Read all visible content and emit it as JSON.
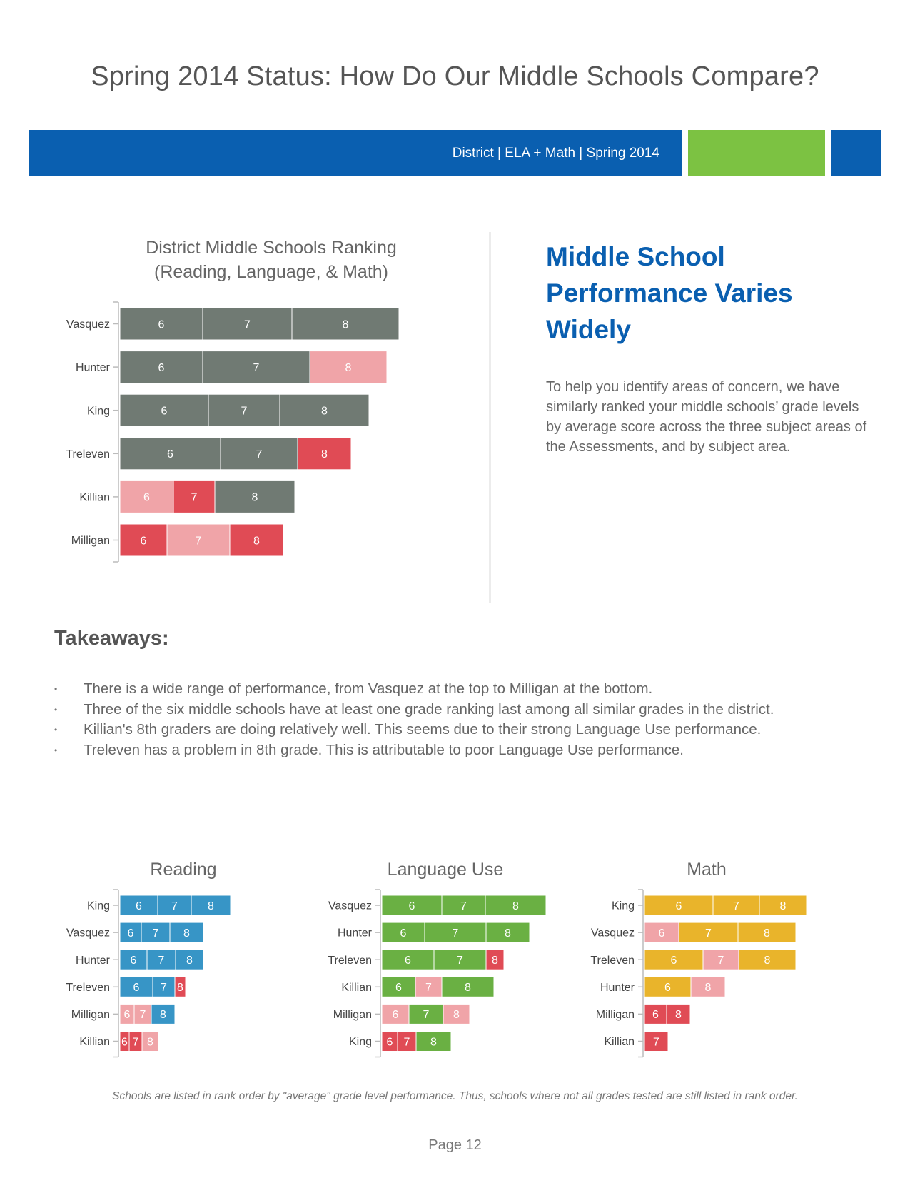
{
  "page": {
    "title": "Spring 2014 Status: How Do Our Middle Schools Compare?",
    "banner_text": "District | ELA + Math | Spring 2014",
    "page_number": "Page 12"
  },
  "colors": {
    "brand_blue": "#0a5fb0",
    "brand_green": "#7cc242",
    "gray": "#707a73",
    "light_red": "#f0a4a8",
    "red": "#e04b55",
    "reading_blue": "#3795c6",
    "language_green": "#6ab043",
    "math_gold": "#e9b42b"
  },
  "side": {
    "heading": "Middle School Performance Varies Widely",
    "paragraph": "To help you identify areas of concern, we have similarly ranked your middle schools’ grade levels by average score across the three subject areas of the Assessments, and by subject area."
  },
  "takeaways": {
    "title": "Takeaways:",
    "items": [
      "There is a wide range of performance, from Vasquez at the top to Milligan at the bottom.",
      "Three of the six middle schools have at least one grade ranking last among all similar grades in the district.",
      "Killian's 8th graders are doing relatively well. This seems due to their strong Language Use performance.",
      "Treleven has a problem in 8th grade. This is attributable to poor Language Use performance."
    ]
  },
  "footnote": "Schools are listed in rank order by \"average\" grade level performance. Thus, schools where not all grades tested are still listed in rank order.",
  "chart_data": [
    {
      "type": "bar",
      "stacked": true,
      "orientation": "horizontal",
      "title": "District Middle Schools Ranking",
      "subtitle": "(Reading, Language, & Math)",
      "categories": [
        "Vasquez",
        "Hunter",
        "King",
        "Treleven",
        "Killian",
        "Milligan"
      ],
      "rows": [
        {
          "school": "Vasquez",
          "segments": [
            {
              "label": "6",
              "value": 116,
              "status": "normal"
            },
            {
              "label": "7",
              "value": 125,
              "status": "normal"
            },
            {
              "label": "8",
              "value": 150,
              "status": "normal"
            }
          ]
        },
        {
          "school": "Hunter",
          "segments": [
            {
              "label": "6",
              "value": 116,
              "status": "normal"
            },
            {
              "label": "7",
              "value": 150,
              "status": "normal"
            },
            {
              "label": "8",
              "value": 108,
              "status": "concern"
            }
          ]
        },
        {
          "school": "King",
          "segments": [
            {
              "label": "6",
              "value": 124,
              "status": "normal"
            },
            {
              "label": "7",
              "value": 100,
              "status": "normal"
            },
            {
              "label": "8",
              "value": 125,
              "status": "normal"
            }
          ]
        },
        {
          "school": "Treleven",
          "segments": [
            {
              "label": "6",
              "value": 141,
              "status": "normal"
            },
            {
              "label": "7",
              "value": 108,
              "status": "normal"
            },
            {
              "label": "8",
              "value": 75,
              "status": "last"
            }
          ]
        },
        {
          "school": "Killian",
          "segments": [
            {
              "label": "6",
              "value": 75,
              "status": "concern"
            },
            {
              "label": "7",
              "value": 58,
              "status": "last"
            },
            {
              "label": "8",
              "value": 112,
              "status": "normal"
            }
          ]
        },
        {
          "school": "Milligan",
          "segments": [
            {
              "label": "6",
              "value": 66,
              "status": "last"
            },
            {
              "label": "7",
              "value": 88,
              "status": "concern"
            },
            {
              "label": "8",
              "value": 75,
              "status": "last"
            }
          ]
        }
      ]
    },
    {
      "type": "bar",
      "stacked": true,
      "orientation": "horizontal",
      "title": "Reading",
      "categories": [
        "King",
        "Vasquez",
        "Hunter",
        "Treleven",
        "Milligan",
        "Killian"
      ],
      "rows": [
        {
          "school": "King",
          "segments": [
            {
              "label": "6",
              "value": 53,
              "status": "normal"
            },
            {
              "label": "7",
              "value": 47,
              "status": "normal"
            },
            {
              "label": "8",
              "value": 55,
              "status": "normal"
            }
          ]
        },
        {
          "school": "Vasquez",
          "segments": [
            {
              "label": "6",
              "value": 30,
              "status": "normal"
            },
            {
              "label": "7",
              "value": 40,
              "status": "normal"
            },
            {
              "label": "8",
              "value": 47,
              "status": "normal"
            }
          ]
        },
        {
          "school": "Hunter",
          "segments": [
            {
              "label": "6",
              "value": 38,
              "status": "normal"
            },
            {
              "label": "7",
              "value": 40,
              "status": "normal"
            },
            {
              "label": "8",
              "value": 39,
              "status": "normal"
            }
          ]
        },
        {
          "school": "Treleven",
          "segments": [
            {
              "label": "6",
              "value": 46,
              "status": "normal"
            },
            {
              "label": "7",
              "value": 31,
              "status": "normal"
            },
            {
              "label": "8",
              "value": 15,
              "status": "last"
            }
          ]
        },
        {
          "school": "Milligan",
          "segments": [
            {
              "label": "6",
              "value": 20,
              "status": "concern"
            },
            {
              "label": "7",
              "value": 24,
              "status": "concern"
            },
            {
              "label": "8",
              "value": 33,
              "status": "normal"
            }
          ]
        },
        {
          "school": "Killian",
          "segments": [
            {
              "label": "6",
              "value": 13,
              "status": "last"
            },
            {
              "label": "7",
              "value": 18,
              "status": "last"
            },
            {
              "label": "8",
              "value": 23,
              "status": "concern"
            }
          ]
        }
      ]
    },
    {
      "type": "bar",
      "stacked": true,
      "orientation": "horizontal",
      "title": "Language Use",
      "categories": [
        "Vasquez",
        "Hunter",
        "Treleven",
        "Killian",
        "Milligan",
        "King"
      ],
      "rows": [
        {
          "school": "Vasquez",
          "segments": [
            {
              "label": "6",
              "value": 84,
              "status": "normal"
            },
            {
              "label": "7",
              "value": 61,
              "status": "normal"
            },
            {
              "label": "8",
              "value": 85,
              "status": "normal"
            }
          ]
        },
        {
          "school": "Hunter",
          "segments": [
            {
              "label": "6",
              "value": 60,
              "status": "normal"
            },
            {
              "label": "7",
              "value": 86,
              "status": "normal"
            },
            {
              "label": "8",
              "value": 61,
              "status": "normal"
            }
          ]
        },
        {
          "school": "Treleven",
          "segments": [
            {
              "label": "6",
              "value": 73,
              "status": "normal"
            },
            {
              "label": "7",
              "value": 73,
              "status": "normal"
            },
            {
              "label": "8",
              "value": 25,
              "status": "last"
            }
          ]
        },
        {
          "school": "Killian",
          "segments": [
            {
              "label": "6",
              "value": 47,
              "status": "normal"
            },
            {
              "label": "7",
              "value": 37,
              "status": "concern"
            },
            {
              "label": "8",
              "value": 73,
              "status": "normal"
            }
          ]
        },
        {
          "school": "Milligan",
          "segments": [
            {
              "label": "6",
              "value": 38,
              "status": "concern"
            },
            {
              "label": "7",
              "value": 48,
              "status": "normal"
            },
            {
              "label": "8",
              "value": 37,
              "status": "concern"
            }
          ]
        },
        {
          "school": "King",
          "segments": [
            {
              "label": "6",
              "value": 22,
              "status": "last"
            },
            {
              "label": "7",
              "value": 26,
              "status": "last"
            },
            {
              "label": "8",
              "value": 49,
              "status": "normal"
            }
          ]
        }
      ]
    },
    {
      "type": "bar",
      "stacked": true,
      "orientation": "horizontal",
      "title": "Math",
      "categories": [
        "King",
        "Vasquez",
        "Treleven",
        "Hunter",
        "Milligan",
        "Killian"
      ],
      "rows": [
        {
          "school": "King",
          "segments": [
            {
              "label": "6",
              "value": 96,
              "status": "normal"
            },
            {
              "label": "7",
              "value": 65,
              "status": "normal"
            },
            {
              "label": "8",
              "value": 66,
              "status": "normal"
            }
          ]
        },
        {
          "school": "Vasquez",
          "segments": [
            {
              "label": "6",
              "value": 48,
              "status": "concern"
            },
            {
              "label": "7",
              "value": 83,
              "status": "normal"
            },
            {
              "label": "8",
              "value": 81,
              "status": "normal"
            }
          ]
        },
        {
          "school": "Treleven",
          "segments": [
            {
              "label": "6",
              "value": 82,
              "status": "normal"
            },
            {
              "label": "7",
              "value": 50,
              "status": "concern"
            },
            {
              "label": "8",
              "value": 80,
              "status": "normal"
            }
          ]
        },
        {
          "school": "Hunter",
          "segments": [
            {
              "label": "6",
              "value": 65,
              "status": "normal"
            },
            {
              "label": "8",
              "value": 48,
              "status": "concern"
            }
          ]
        },
        {
          "school": "Milligan",
          "segments": [
            {
              "label": "6",
              "value": 31,
              "status": "last"
            },
            {
              "label": "8",
              "value": 33,
              "status": "last"
            }
          ]
        },
        {
          "school": "Killian",
          "segments": [
            {
              "label": "7",
              "value": 33,
              "status": "last"
            }
          ]
        }
      ]
    }
  ]
}
